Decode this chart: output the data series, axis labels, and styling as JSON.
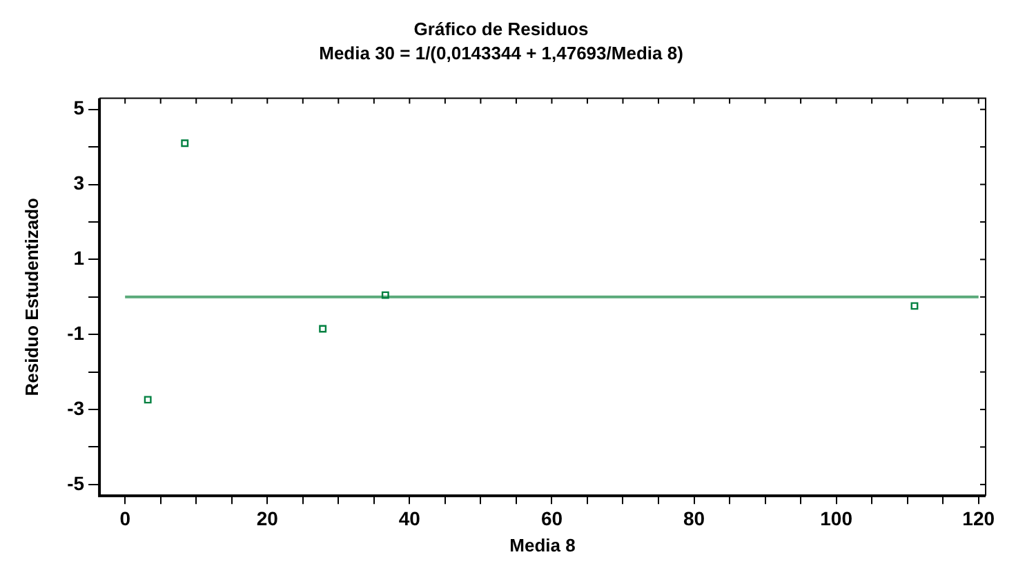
{
  "chart_data": {
    "type": "scatter",
    "title": "Gráfico de Residuos",
    "subtitle": "Media 30 = 1/(0,0143344 + 1,47693/Media 8)",
    "xlabel": "Media 8",
    "ylabel": "Residuo Estudentizado",
    "x": [
      3.2,
      8.4,
      27.8,
      36.6,
      111.0
    ],
    "series": [
      {
        "color": "#008040",
        "values": [
          -2.74,
          4.1,
          -0.85,
          0.05,
          -0.24
        ]
      }
    ],
    "marker": "square",
    "grid": false,
    "legend": false,
    "xlim": [
      -3.6,
      121
    ],
    "ylim": [
      -5.3,
      5.3
    ],
    "xticks": [
      0,
      {
        "value": 5,
        "label": null
      },
      {
        "value": 10,
        "label": null
      },
      {
        "value": 15,
        "label": null
      },
      20,
      {
        "value": 25,
        "label": null
      },
      {
        "value": 30,
        "label": null
      },
      {
        "value": 35,
        "label": null
      },
      40,
      {
        "value": 45,
        "label": null
      },
      {
        "value": 50,
        "label": null
      },
      {
        "value": 55,
        "label": null
      },
      60,
      {
        "value": 65,
        "label": null
      },
      {
        "value": 70,
        "label": null
      },
      {
        "value": 75,
        "label": null
      },
      80,
      {
        "value": 85,
        "label": null
      },
      {
        "value": 90,
        "label": null
      },
      {
        "value": 95,
        "label": null
      },
      100,
      {
        "value": 105,
        "label": null
      },
      {
        "value": 110,
        "label": null
      },
      {
        "value": 115,
        "label": null
      },
      120
    ],
    "yticks": [
      -5,
      {
        "value": -4,
        "label": null
      },
      -3,
      {
        "value": -2,
        "label": null
      },
      -1,
      {
        "value": 0,
        "label": null
      },
      1,
      {
        "value": 2,
        "label": null
      },
      3,
      {
        "value": 4,
        "label": null
      },
      5
    ],
    "ref_lines": [
      {
        "axis": "y",
        "value": 0,
        "color": "#5aaa7a",
        "line_style": "solid"
      }
    ]
  }
}
